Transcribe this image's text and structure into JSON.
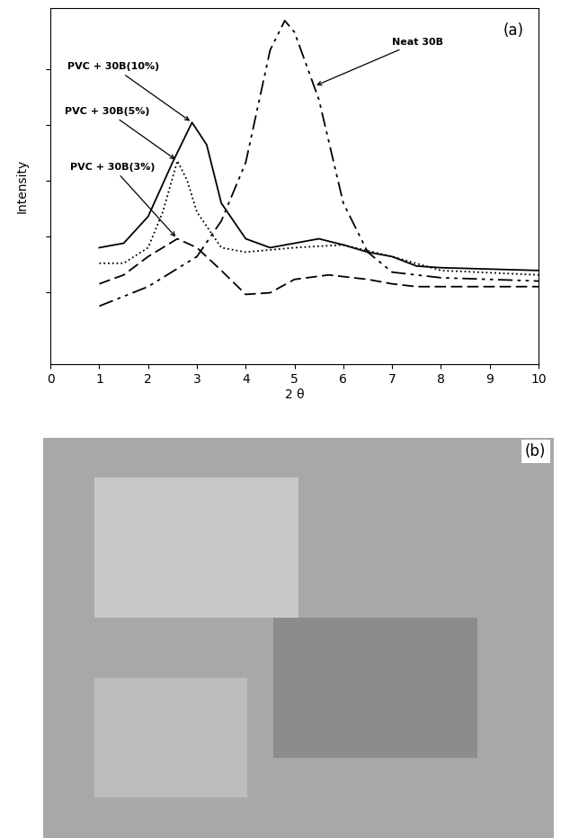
{
  "chart_data": [
    {
      "type": "line",
      "panel_label": "(a)",
      "x_label": "2 θ",
      "y_label": "Intensity",
      "xlim": [
        0,
        10
      ],
      "xticks": [
        0,
        1,
        2,
        3,
        4,
        5,
        6,
        7,
        8,
        9,
        10
      ],
      "ylim": [
        0,
        6.4
      ],
      "yticks": [
        1.3,
        2.3,
        3.3,
        4.3,
        5.3
      ],
      "tick_labels": "x",
      "grid": false,
      "series": [
        {
          "name": "PVC + 30B(10%)",
          "color": "#000000",
          "line_style": "solid",
          "x": [
            1,
            1.5,
            2,
            2.5,
            2.9,
            3.2,
            3.5,
            4,
            4.5,
            5,
            5.5,
            6,
            6.5,
            7,
            7.5,
            8,
            10
          ],
          "values": [
            2.1,
            2.18,
            2.66,
            3.63,
            4.35,
            3.95,
            2.9,
            2.26,
            2.1,
            2.18,
            2.26,
            2.15,
            2.02,
            1.94,
            1.77,
            1.74,
            1.69
          ],
          "annotation": {
            "x": 2.9,
            "y": 4.35
          }
        },
        {
          "name": "PVC + 30B(5%)",
          "color": "#000000",
          "line_style": "dotted",
          "x": [
            1,
            1.5,
            2,
            2.3,
            2.6,
            2.8,
            3,
            3.5,
            4,
            5,
            6,
            7,
            8,
            10
          ],
          "values": [
            1.82,
            1.82,
            2.1,
            2.74,
            3.66,
            3.31,
            2.74,
            2.1,
            2.02,
            2.1,
            2.15,
            1.94,
            1.69,
            1.61
          ],
          "annotation": {
            "x": 2.6,
            "y": 3.66
          }
        },
        {
          "name": "PVC + 30B(3%)",
          "color": "#000000",
          "line_style": "dashed",
          "x": [
            1,
            1.5,
            2,
            2.6,
            3,
            3.5,
            4,
            4.5,
            5,
            5.7,
            6.5,
            7,
            7.5,
            10
          ],
          "values": [
            1.45,
            1.61,
            1.94,
            2.26,
            2.1,
            1.69,
            1.26,
            1.29,
            1.53,
            1.61,
            1.53,
            1.45,
            1.4,
            1.4
          ],
          "annotation": {
            "x": 2.6,
            "y": 2.26
          }
        },
        {
          "name": "Neat 30B",
          "color": "#000000",
          "line_style": "dashdotdot",
          "x": [
            1,
            2,
            3,
            3.5,
            4,
            4.5,
            4.8,
            5,
            5.5,
            6,
            6.5,
            7,
            8,
            9,
            10
          ],
          "values": [
            1.05,
            1.4,
            1.94,
            2.58,
            3.63,
            5.65,
            6.18,
            5.97,
            4.76,
            2.9,
            2.02,
            1.66,
            1.56,
            1.53,
            1.5
          ],
          "annotation": {
            "x": 5.4,
            "y": 5.0
          }
        }
      ]
    },
    {
      "type": "image",
      "panel_label": "(b)"
    }
  ]
}
